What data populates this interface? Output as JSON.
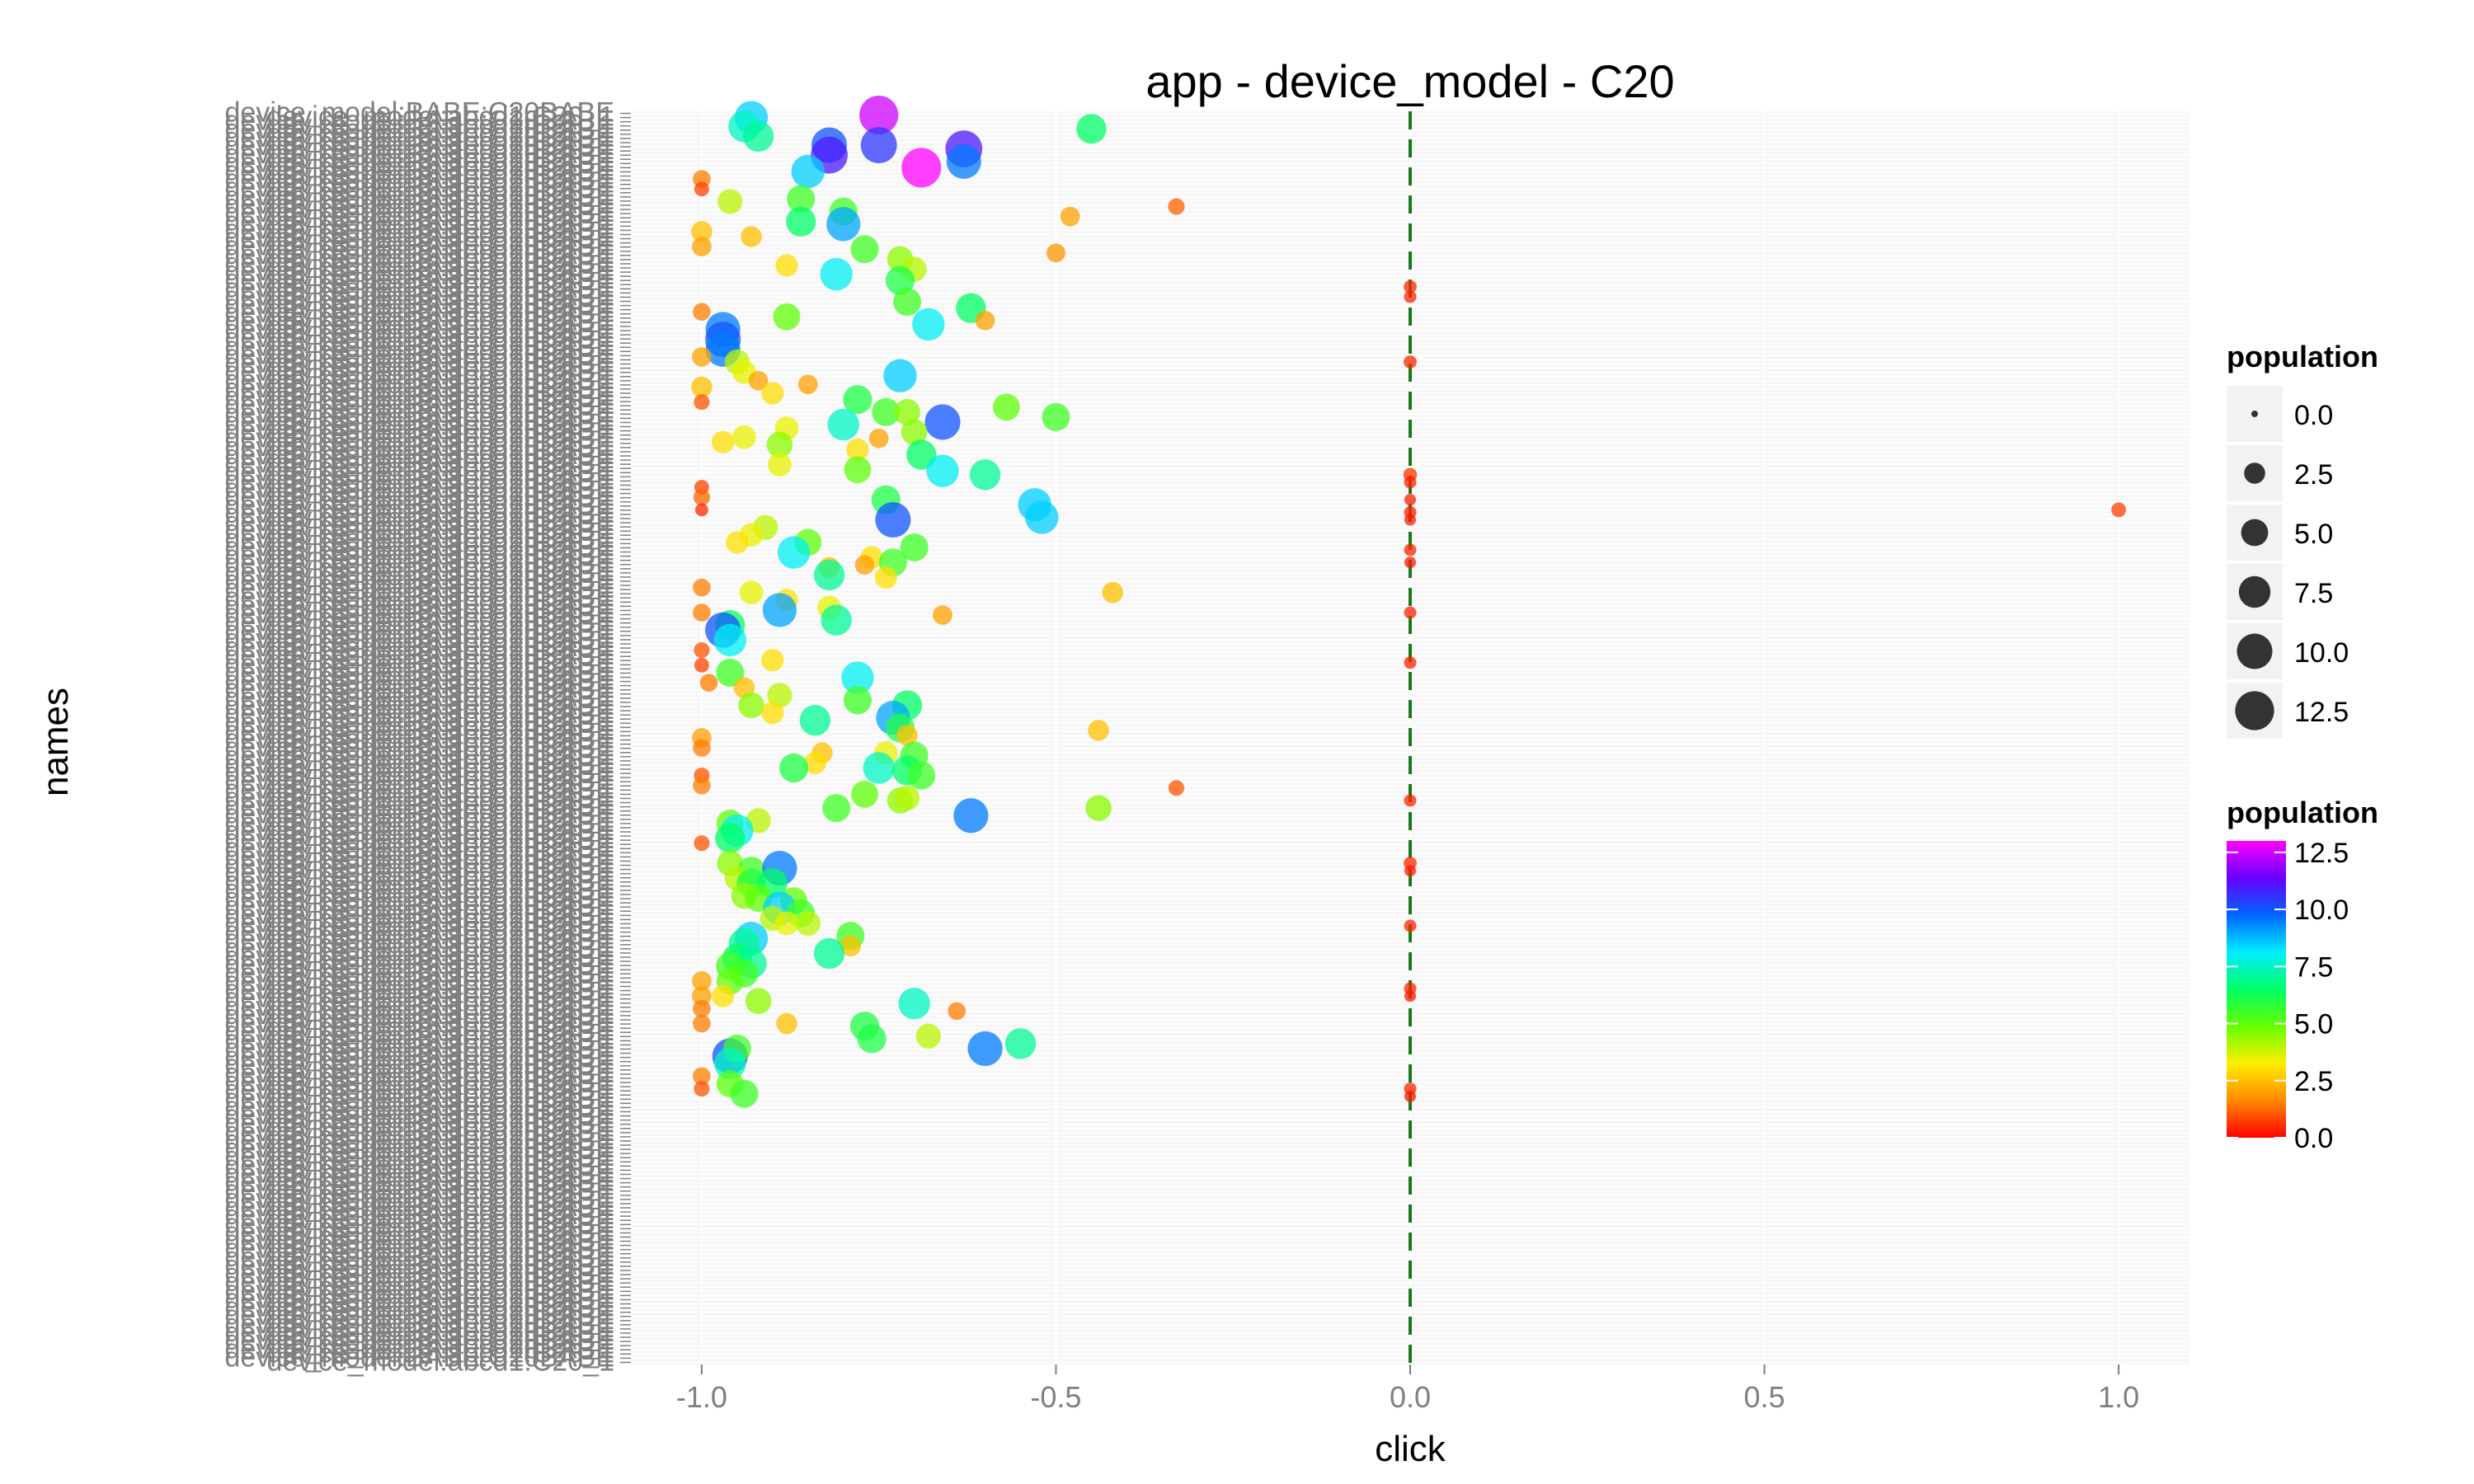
{
  "chart_data": {
    "type": "scatter",
    "title": "app - device_model - C20",
    "xlabel": "click",
    "ylabel": "names",
    "xlim": [
      -1.1,
      1.1
    ],
    "x_ticks": [
      "-1.0",
      "-0.5",
      "0.0",
      "0.5",
      "1.0"
    ],
    "x_tick_values": [
      -1.0,
      -0.5,
      0.0,
      0.5,
      1.0
    ],
    "reference_line": {
      "x": 0.0,
      "style": "dashed",
      "color": "#1a7a1a"
    },
    "y_category_labels_sample": [
      "device_model:BABE:C20BABE",
      "device_model:abcd1:C20_1"
    ],
    "y_category_count": 300,
    "grid": true,
    "legend_placement": "right",
    "size_legend": {
      "title": "population",
      "values": [
        0.0,
        2.5,
        5.0,
        7.5,
        10.0,
        12.5
      ],
      "labels": [
        "0.0",
        "2.5",
        "5.0",
        "7.5",
        "10.0",
        "12.5"
      ]
    },
    "color_legend": {
      "title": "population",
      "labels": [
        "12.5",
        "10.0",
        "7.5",
        "5.0",
        "2.5",
        "0.0"
      ],
      "values": [
        12.5,
        10.0,
        7.5,
        5.0,
        2.5,
        0.0
      ],
      "range": [
        0.0,
        13.0
      ],
      "colors": [
        "#ff0000",
        "#ff8800",
        "#ffee00",
        "#66ff00",
        "#00ff66",
        "#00eeff",
        "#0066ff",
        "#6600ff",
        "#ff00ff"
      ]
    },
    "points": [
      {
        "x": -0.93,
        "y": 0.005,
        "population": 8.5
      },
      {
        "x": -0.94,
        "y": 0.012,
        "population": 7.5
      },
      {
        "x": -0.75,
        "y": 0.003,
        "population": 12.5
      },
      {
        "x": -0.45,
        "y": 0.014,
        "population": 6.5
      },
      {
        "x": -0.92,
        "y": 0.02,
        "population": 7.0
      },
      {
        "x": -0.82,
        "y": 0.027,
        "population": 10.0
      },
      {
        "x": -0.75,
        "y": 0.027,
        "population": 10.5
      },
      {
        "x": -0.63,
        "y": 0.03,
        "population": 11.0
      },
      {
        "x": -0.82,
        "y": 0.035,
        "population": 11.0
      },
      {
        "x": -0.69,
        "y": 0.045,
        "population": 13.0
      },
      {
        "x": -0.63,
        "y": 0.04,
        "population": 9.5
      },
      {
        "x": -0.85,
        "y": 0.048,
        "population": 8.5
      },
      {
        "x": -1.0,
        "y": 0.054,
        "population": 1.5
      },
      {
        "x": -1.0,
        "y": 0.062,
        "population": 0.8
      },
      {
        "x": -0.96,
        "y": 0.072,
        "population": 4.0
      },
      {
        "x": -0.86,
        "y": 0.07,
        "population": 5.5
      },
      {
        "x": -0.8,
        "y": 0.08,
        "population": 5.5
      },
      {
        "x": -0.33,
        "y": 0.076,
        "population": 1.2
      },
      {
        "x": -0.86,
        "y": 0.088,
        "population": 6.5
      },
      {
        "x": -0.8,
        "y": 0.09,
        "population": 9.0
      },
      {
        "x": -0.48,
        "y": 0.084,
        "population": 2.0
      },
      {
        "x": -1.0,
        "y": 0.096,
        "population": 2.5
      },
      {
        "x": -0.93,
        "y": 0.1,
        "population": 2.5
      },
      {
        "x": -1.0,
        "y": 0.108,
        "population": 2.0
      },
      {
        "x": -0.77,
        "y": 0.11,
        "population": 5.5
      },
      {
        "x": -0.72,
        "y": 0.118,
        "population": 4.5
      },
      {
        "x": -0.5,
        "y": 0.113,
        "population": 1.8
      },
      {
        "x": -0.88,
        "y": 0.123,
        "population": 3.0
      },
      {
        "x": -0.7,
        "y": 0.126,
        "population": 4.0
      },
      {
        "x": -0.81,
        "y": 0.13,
        "population": 8.0
      },
      {
        "x": -0.72,
        "y": 0.135,
        "population": 6.0
      },
      {
        "x": 0.0,
        "y": 0.14,
        "population": 0.5
      },
      {
        "x": 0.0,
        "y": 0.148,
        "population": 0.4
      },
      {
        "x": -0.71,
        "y": 0.152,
        "population": 5.5
      },
      {
        "x": -0.62,
        "y": 0.157,
        "population": 6.5
      },
      {
        "x": -1.0,
        "y": 0.16,
        "population": 1.5
      },
      {
        "x": -0.88,
        "y": 0.164,
        "population": 5.0
      },
      {
        "x": -0.6,
        "y": 0.167,
        "population": 2.0
      },
      {
        "x": -0.68,
        "y": 0.17,
        "population": 8.0
      },
      {
        "x": -0.97,
        "y": 0.174,
        "population": 9.5
      },
      {
        "x": -0.97,
        "y": 0.182,
        "population": 10.0
      },
      {
        "x": -0.97,
        "y": 0.19,
        "population": 9.5
      },
      {
        "x": -1.0,
        "y": 0.196,
        "population": 2.0
      },
      {
        "x": -0.95,
        "y": 0.2,
        "population": 4.0
      },
      {
        "x": 0.0,
        "y": 0.2,
        "population": 0.5
      },
      {
        "x": -0.72,
        "y": 0.211,
        "population": 8.5
      },
      {
        "x": -0.94,
        "y": 0.208,
        "population": 3.5
      },
      {
        "x": -1.0,
        "y": 0.22,
        "population": 2.5
      },
      {
        "x": -0.92,
        "y": 0.215,
        "population": 2.0
      },
      {
        "x": -0.85,
        "y": 0.218,
        "population": 2.0
      },
      {
        "x": -0.9,
        "y": 0.225,
        "population": 3.0
      },
      {
        "x": -1.0,
        "y": 0.232,
        "population": 1.0
      },
      {
        "x": -0.78,
        "y": 0.23,
        "population": 6.0
      },
      {
        "x": -0.57,
        "y": 0.236,
        "population": 5.0
      },
      {
        "x": -0.74,
        "y": 0.24,
        "population": 5.5
      },
      {
        "x": -0.71,
        "y": 0.24,
        "population": 4.5
      },
      {
        "x": -0.5,
        "y": 0.244,
        "population": 5.5
      },
      {
        "x": -0.66,
        "y": 0.248,
        "population": 10.0
      },
      {
        "x": -0.8,
        "y": 0.25,
        "population": 7.5
      },
      {
        "x": -0.88,
        "y": 0.253,
        "population": 3.5
      },
      {
        "x": -0.7,
        "y": 0.256,
        "population": 4.5
      },
      {
        "x": -0.75,
        "y": 0.261,
        "population": 2.0
      },
      {
        "x": -0.94,
        "y": 0.26,
        "population": 3.5
      },
      {
        "x": -0.97,
        "y": 0.264,
        "population": 3.0
      },
      {
        "x": -0.89,
        "y": 0.266,
        "population": 4.5
      },
      {
        "x": -0.78,
        "y": 0.27,
        "population": 3.0
      },
      {
        "x": -0.69,
        "y": 0.274,
        "population": 6.5
      },
      {
        "x": -0.6,
        "y": 0.29,
        "population": 7.0
      },
      {
        "x": -0.66,
        "y": 0.287,
        "population": 8.0
      },
      {
        "x": -0.78,
        "y": 0.286,
        "population": 5.0
      },
      {
        "x": -0.89,
        "y": 0.282,
        "population": 3.5
      },
      {
        "x": 0.0,
        "y": 0.29,
        "population": 0.6
      },
      {
        "x": 0.0,
        "y": 0.296,
        "population": 0.4
      },
      {
        "x": -1.0,
        "y": 0.3,
        "population": 0.8
      },
      {
        "x": -1.0,
        "y": 0.308,
        "population": 1.2
      },
      {
        "x": -0.74,
        "y": 0.31,
        "population": 6.0
      },
      {
        "x": -0.53,
        "y": 0.314,
        "population": 8.5
      },
      {
        "x": 0.0,
        "y": 0.31,
        "population": 0.3
      },
      {
        "x": -1.0,
        "y": 0.318,
        "population": 0.5
      },
      {
        "x": 0.0,
        "y": 0.32,
        "population": 0.4
      },
      {
        "x": -0.73,
        "y": 0.326,
        "population": 10.0
      },
      {
        "x": -0.52,
        "y": 0.324,
        "population": 8.5
      },
      {
        "x": 1.0,
        "y": 0.318,
        "population": 0.8
      },
      {
        "x": 0.0,
        "y": 0.326,
        "population": 0.3
      },
      {
        "x": -0.91,
        "y": 0.332,
        "population": 4.0
      },
      {
        "x": -0.93,
        "y": 0.338,
        "population": 3.5
      },
      {
        "x": -0.95,
        "y": 0.344,
        "population": 3.0
      },
      {
        "x": -0.85,
        "y": 0.344,
        "population": 5.0
      },
      {
        "x": -0.7,
        "y": 0.348,
        "population": 5.5
      },
      {
        "x": -0.87,
        "y": 0.352,
        "population": 8.0
      },
      {
        "x": -0.76,
        "y": 0.356,
        "population": 3.0
      },
      {
        "x": -0.73,
        "y": 0.36,
        "population": 5.5
      },
      {
        "x": -0.82,
        "y": 0.364,
        "population": 2.5
      },
      {
        "x": -0.77,
        "y": 0.362,
        "population": 2.0
      },
      {
        "x": -0.82,
        "y": 0.37,
        "population": 7.0
      },
      {
        "x": -0.74,
        "y": 0.372,
        "population": 3.0
      },
      {
        "x": 0.0,
        "y": 0.35,
        "population": 0.4
      },
      {
        "x": 0.0,
        "y": 0.36,
        "population": 0.3
      },
      {
        "x": -1.0,
        "y": 0.38,
        "population": 1.5
      },
      {
        "x": -0.93,
        "y": 0.384,
        "population": 3.5
      },
      {
        "x": -0.42,
        "y": 0.384,
        "population": 2.5
      },
      {
        "x": -0.88,
        "y": 0.39,
        "population": 3.0
      },
      {
        "x": -0.89,
        "y": 0.398,
        "population": 9.0
      },
      {
        "x": -0.82,
        "y": 0.396,
        "population": 3.5
      },
      {
        "x": -0.66,
        "y": 0.402,
        "population": 2.0
      },
      {
        "x": -1.0,
        "y": 0.4,
        "population": 1.5
      },
      {
        "x": 0.0,
        "y": 0.4,
        "population": 0.4
      },
      {
        "x": -0.81,
        "y": 0.406,
        "population": 7.0
      },
      {
        "x": -0.96,
        "y": 0.41,
        "population": 6.5
      },
      {
        "x": -0.97,
        "y": 0.414,
        "population": 10.0
      },
      {
        "x": -0.96,
        "y": 0.422,
        "population": 8.0
      },
      {
        "x": -1.0,
        "y": 0.43,
        "population": 1.0
      },
      {
        "x": -1.0,
        "y": 0.442,
        "population": 0.8
      },
      {
        "x": -0.9,
        "y": 0.438,
        "population": 3.0
      },
      {
        "x": 0.0,
        "y": 0.44,
        "population": 0.4
      },
      {
        "x": -0.96,
        "y": 0.448,
        "population": 5.5
      },
      {
        "x": -0.78,
        "y": 0.452,
        "population": 8.0
      },
      {
        "x": -0.99,
        "y": 0.456,
        "population": 1.5
      },
      {
        "x": -0.94,
        "y": 0.46,
        "population": 2.5
      },
      {
        "x": -0.89,
        "y": 0.466,
        "population": 4.0
      },
      {
        "x": -0.78,
        "y": 0.47,
        "population": 5.5
      },
      {
        "x": -0.71,
        "y": 0.474,
        "population": 6.5
      },
      {
        "x": -0.93,
        "y": 0.474,
        "population": 4.5
      },
      {
        "x": -0.9,
        "y": 0.48,
        "population": 3.0
      },
      {
        "x": -0.84,
        "y": 0.486,
        "population": 7.0
      },
      {
        "x": -0.73,
        "y": 0.484,
        "population": 9.0
      },
      {
        "x": -0.72,
        "y": 0.492,
        "population": 6.0
      },
      {
        "x": -0.71,
        "y": 0.498,
        "population": 2.5
      },
      {
        "x": -0.44,
        "y": 0.494,
        "population": 2.5
      },
      {
        "x": -1.0,
        "y": 0.5,
        "population": 2.0
      },
      {
        "x": -1.0,
        "y": 0.508,
        "population": 1.5
      },
      {
        "x": -0.74,
        "y": 0.512,
        "population": 3.5
      },
      {
        "x": -0.83,
        "y": 0.512,
        "population": 2.5
      },
      {
        "x": -0.7,
        "y": 0.514,
        "population": 5.5
      },
      {
        "x": -0.84,
        "y": 0.52,
        "population": 3.0
      },
      {
        "x": -0.87,
        "y": 0.524,
        "population": 6.0
      },
      {
        "x": -0.75,
        "y": 0.524,
        "population": 7.5
      },
      {
        "x": -0.71,
        "y": 0.526,
        "population": 6.5
      },
      {
        "x": -0.69,
        "y": 0.53,
        "population": 5.5
      },
      {
        "x": -1.0,
        "y": 0.53,
        "population": 1.0
      },
      {
        "x": -1.0,
        "y": 0.538,
        "population": 1.5
      },
      {
        "x": -0.33,
        "y": 0.54,
        "population": 1.0
      },
      {
        "x": -0.77,
        "y": 0.545,
        "population": 5.0
      },
      {
        "x": -0.72,
        "y": 0.55,
        "population": 4.5
      },
      {
        "x": -0.71,
        "y": 0.548,
        "population": 4.0
      },
      {
        "x": -0.81,
        "y": 0.556,
        "population": 5.5
      },
      {
        "x": -0.62,
        "y": 0.562,
        "population": 9.5
      },
      {
        "x": -0.44,
        "y": 0.556,
        "population": 4.5
      },
      {
        "x": 0.0,
        "y": 0.55,
        "population": 0.4
      },
      {
        "x": -0.96,
        "y": 0.568,
        "population": 5.0
      },
      {
        "x": -0.92,
        "y": 0.566,
        "population": 4.0
      },
      {
        "x": -0.95,
        "y": 0.574,
        "population": 8.0
      },
      {
        "x": -0.96,
        "y": 0.58,
        "population": 6.5
      },
      {
        "x": -1.0,
        "y": 0.584,
        "population": 1.0
      },
      {
        "x": 0.0,
        "y": 0.6,
        "population": 0.5
      },
      {
        "x": 0.0,
        "y": 0.606,
        "population": 0.3
      },
      {
        "x": -0.96,
        "y": 0.6,
        "population": 4.5
      },
      {
        "x": -0.93,
        "y": 0.606,
        "population": 5.5
      },
      {
        "x": -0.89,
        "y": 0.604,
        "population": 9.5
      },
      {
        "x": -0.95,
        "y": 0.612,
        "population": 4.0
      },
      {
        "x": -0.93,
        "y": 0.616,
        "population": 6.0
      },
      {
        "x": -0.9,
        "y": 0.616,
        "population": 6.5
      },
      {
        "x": -0.94,
        "y": 0.626,
        "population": 4.5
      },
      {
        "x": -0.92,
        "y": 0.628,
        "population": 5.0
      },
      {
        "x": -0.87,
        "y": 0.63,
        "population": 5.0
      },
      {
        "x": -0.89,
        "y": 0.636,
        "population": 8.5
      },
      {
        "x": -0.86,
        "y": 0.64,
        "population": 5.5
      },
      {
        "x": -0.9,
        "y": 0.644,
        "population": 4.0
      },
      {
        "x": -0.88,
        "y": 0.648,
        "population": 3.5
      },
      {
        "x": -0.85,
        "y": 0.648,
        "population": 4.0
      },
      {
        "x": -0.93,
        "y": 0.66,
        "population": 8.5
      },
      {
        "x": -0.94,
        "y": 0.664,
        "population": 7.0
      },
      {
        "x": -0.79,
        "y": 0.658,
        "population": 5.5
      },
      {
        "x": -0.79,
        "y": 0.666,
        "population": 2.5
      },
      {
        "x": -0.82,
        "y": 0.672,
        "population": 7.0
      },
      {
        "x": -0.95,
        "y": 0.676,
        "population": 6.5
      },
      {
        "x": -0.93,
        "y": 0.68,
        "population": 7.0
      },
      {
        "x": -0.96,
        "y": 0.682,
        "population": 5.5
      },
      {
        "x": -0.94,
        "y": 0.688,
        "population": 5.5
      },
      {
        "x": 0.0,
        "y": 0.65,
        "population": 0.4
      },
      {
        "x": 0.0,
        "y": 0.7,
        "population": 0.4
      },
      {
        "x": 0.0,
        "y": 0.706,
        "population": 0.3
      },
      {
        "x": -0.96,
        "y": 0.694,
        "population": 5.0
      },
      {
        "x": -1.0,
        "y": 0.694,
        "population": 2.0
      },
      {
        "x": -1.0,
        "y": 0.706,
        "population": 2.0
      },
      {
        "x": -0.97,
        "y": 0.706,
        "population": 3.0
      },
      {
        "x": -0.92,
        "y": 0.71,
        "population": 4.5
      },
      {
        "x": -1.0,
        "y": 0.716,
        "population": 1.5
      },
      {
        "x": -0.64,
        "y": 0.718,
        "population": 1.5
      },
      {
        "x": -0.7,
        "y": 0.712,
        "population": 7.5
      },
      {
        "x": -0.88,
        "y": 0.728,
        "population": 2.5
      },
      {
        "x": -1.0,
        "y": 0.728,
        "population": 1.5
      },
      {
        "x": -0.77,
        "y": 0.73,
        "population": 6.0
      },
      {
        "x": -0.68,
        "y": 0.738,
        "population": 4.0
      },
      {
        "x": -0.76,
        "y": 0.74,
        "population": 6.0
      },
      {
        "x": -0.55,
        "y": 0.744,
        "population": 7.0
      },
      {
        "x": -0.6,
        "y": 0.748,
        "population": 9.5
      },
      {
        "x": -0.96,
        "y": 0.754,
        "population": 10.0
      },
      {
        "x": -0.95,
        "y": 0.748,
        "population": 5.5
      },
      {
        "x": -0.96,
        "y": 0.76,
        "population": 7.5
      },
      {
        "x": -1.0,
        "y": 0.77,
        "population": 1.5
      },
      {
        "x": -1.0,
        "y": 0.78,
        "population": 1.0
      },
      {
        "x": -0.96,
        "y": 0.776,
        "population": 5.0
      },
      {
        "x": -0.94,
        "y": 0.784,
        "population": 5.5
      },
      {
        "x": 0.0,
        "y": 0.78,
        "population": 0.4
      },
      {
        "x": 0.0,
        "y": 0.786,
        "population": 0.3
      }
    ]
  }
}
